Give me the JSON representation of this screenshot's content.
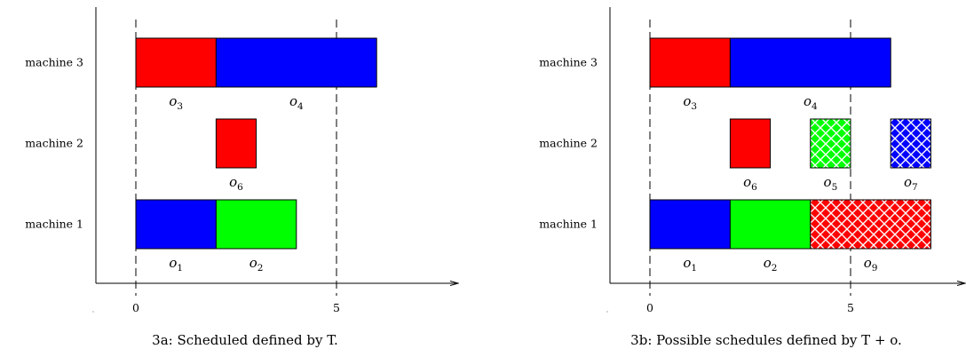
{
  "colors": {
    "red": "#ff0000",
    "blue": "#0000ff",
    "green": "#00ff00"
  },
  "chart_data": [
    {
      "type": "gantt",
      "caption": "3a: Scheduled defined by T.",
      "machines": [
        "machine 1",
        "machine 2",
        "machine 3"
      ],
      "x_ticks": [
        "0",
        "5"
      ],
      "xlim": [
        0,
        8
      ],
      "dashed_lines_at": [
        0,
        5
      ],
      "operations": [
        {
          "id": "o3",
          "base": "o",
          "sub": "3",
          "machine": "machine 3",
          "start": 0,
          "end": 2,
          "color": "red",
          "pattern": "solid"
        },
        {
          "id": "o4",
          "base": "o",
          "sub": "4",
          "machine": "machine 3",
          "start": 2,
          "end": 6,
          "color": "blue",
          "pattern": "solid"
        },
        {
          "id": "o6",
          "base": "o",
          "sub": "6",
          "machine": "machine 2",
          "start": 2,
          "end": 3,
          "color": "red",
          "pattern": "solid"
        },
        {
          "id": "o1",
          "base": "o",
          "sub": "1",
          "machine": "machine 1",
          "start": 0,
          "end": 2,
          "color": "blue",
          "pattern": "solid"
        },
        {
          "id": "o2",
          "base": "o",
          "sub": "2",
          "machine": "machine 1",
          "start": 2,
          "end": 4,
          "color": "green",
          "pattern": "solid"
        }
      ]
    },
    {
      "type": "gantt",
      "caption": "3b: Possible schedules defined by T + o.",
      "machines": [
        "machine 1",
        "machine 2",
        "machine 3"
      ],
      "x_ticks": [
        "0",
        "5"
      ],
      "xlim": [
        0,
        8
      ],
      "dashed_lines_at": [
        0,
        5
      ],
      "operations": [
        {
          "id": "o3",
          "base": "o",
          "sub": "3",
          "machine": "machine 3",
          "start": 0,
          "end": 2,
          "color": "red",
          "pattern": "solid"
        },
        {
          "id": "o4",
          "base": "o",
          "sub": "4",
          "machine": "machine 3",
          "start": 2,
          "end": 6,
          "color": "blue",
          "pattern": "solid"
        },
        {
          "id": "o6",
          "base": "o",
          "sub": "6",
          "machine": "machine 2",
          "start": 2,
          "end": 3,
          "color": "red",
          "pattern": "solid"
        },
        {
          "id": "o5",
          "base": "o",
          "sub": "5",
          "machine": "machine 2",
          "start": 4,
          "end": 5,
          "color": "green",
          "pattern": "crosshatch"
        },
        {
          "id": "o7",
          "base": "o",
          "sub": "7",
          "machine": "machine 2",
          "start": 6,
          "end": 7,
          "color": "blue",
          "pattern": "crosshatch"
        },
        {
          "id": "o1",
          "base": "o",
          "sub": "1",
          "machine": "machine 1",
          "start": 0,
          "end": 2,
          "color": "blue",
          "pattern": "solid"
        },
        {
          "id": "o2",
          "base": "o",
          "sub": "2",
          "machine": "machine 1",
          "start": 2,
          "end": 4,
          "color": "green",
          "pattern": "solid"
        },
        {
          "id": "o9",
          "base": "o",
          "sub": "9",
          "machine": "machine 1",
          "start": 4,
          "end": 7,
          "color": "red",
          "pattern": "crosshatch"
        }
      ]
    }
  ]
}
